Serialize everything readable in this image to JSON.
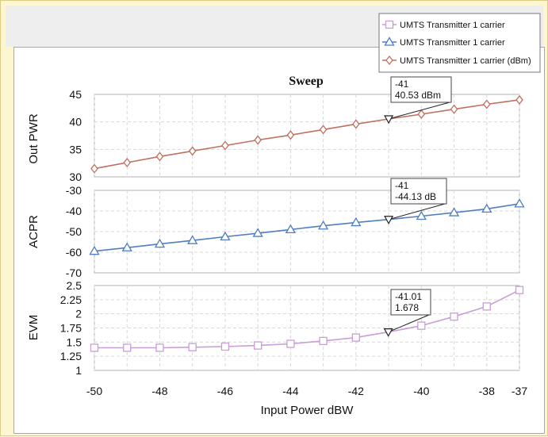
{
  "chart_data": {
    "type": "line",
    "title": "Sweep",
    "xlabel": "Input Power dBW",
    "x_ticks": [
      -50,
      -48,
      -46,
      -44,
      -42,
      -40,
      -38,
      -37
    ],
    "xlim": [
      -50,
      -37
    ],
    "grid": true,
    "legend_position": "top-right",
    "legend": [
      {
        "label": "UMTS Transmitter 1 carrier",
        "color": "#c79fd4",
        "marker": "square"
      },
      {
        "label": "UMTS Transmitter 1 carrier",
        "color": "#4f7ec1",
        "marker": "triangle"
      },
      {
        "label": "UMTS Transmitter 1 carrier (dBm)",
        "color": "#c07060",
        "marker": "diamond"
      }
    ],
    "panels": [
      {
        "ylabel": "Out PWR",
        "ylim": [
          30,
          45
        ],
        "y_ticks": [
          30,
          35,
          40,
          45
        ],
        "series": [
          {
            "color": "#c07060",
            "marker": "diamond",
            "x": [
              -50,
              -49,
              -48,
              -47,
              -46,
              -45,
              -44,
              -43,
              -42,
              -41,
              -40,
              -39,
              -38,
              -37
            ],
            "y": [
              31.5,
              32.6,
              33.7,
              34.7,
              35.7,
              36.7,
              37.6,
              38.6,
              39.6,
              40.53,
              41.4,
              42.3,
              43.2,
              44.0
            ]
          }
        ],
        "marker_annotation": {
          "x": -41,
          "lines": [
            "-41",
            "40.53 dBm"
          ]
        }
      },
      {
        "ylabel": "ACPR",
        "ylim": [
          -70,
          -30
        ],
        "y_ticks": [
          -70,
          -60,
          -50,
          -40,
          -30
        ],
        "series": [
          {
            "color": "#4f7ec1",
            "marker": "triangle",
            "x": [
              -50,
              -49,
              -48,
              -47,
              -46,
              -45,
              -44,
              -43,
              -42,
              -41,
              -40,
              -39,
              -38,
              -37
            ],
            "y": [
              -59.5,
              -57.8,
              -56.0,
              -54.3,
              -52.5,
              -50.8,
              -49.0,
              -47.2,
              -45.6,
              -44.13,
              -42.5,
              -40.8,
              -39.0,
              -36.5
            ]
          }
        ],
        "marker_annotation": {
          "x": -41,
          "lines": [
            "-41",
            "-44.13 dB"
          ]
        }
      },
      {
        "ylabel": "EVM",
        "ylim": [
          1,
          2.5
        ],
        "y_ticks": [
          1,
          1.25,
          1.5,
          1.75,
          2,
          2.25,
          2.5
        ],
        "series": [
          {
            "color": "#c79fd4",
            "marker": "square",
            "x": [
              -50,
              -49,
              -48,
              -47,
              -46,
              -45,
              -44,
              -43,
              -42,
              -41,
              -40,
              -39,
              -38,
              -37
            ],
            "y": [
              1.4,
              1.4,
              1.4,
              1.41,
              1.42,
              1.44,
              1.47,
              1.52,
              1.58,
              1.678,
              1.79,
              1.95,
              2.13,
              2.42
            ]
          }
        ],
        "marker_annotation": {
          "x": -41.01,
          "lines": [
            "-41.01",
            "1.678"
          ]
        }
      }
    ]
  }
}
